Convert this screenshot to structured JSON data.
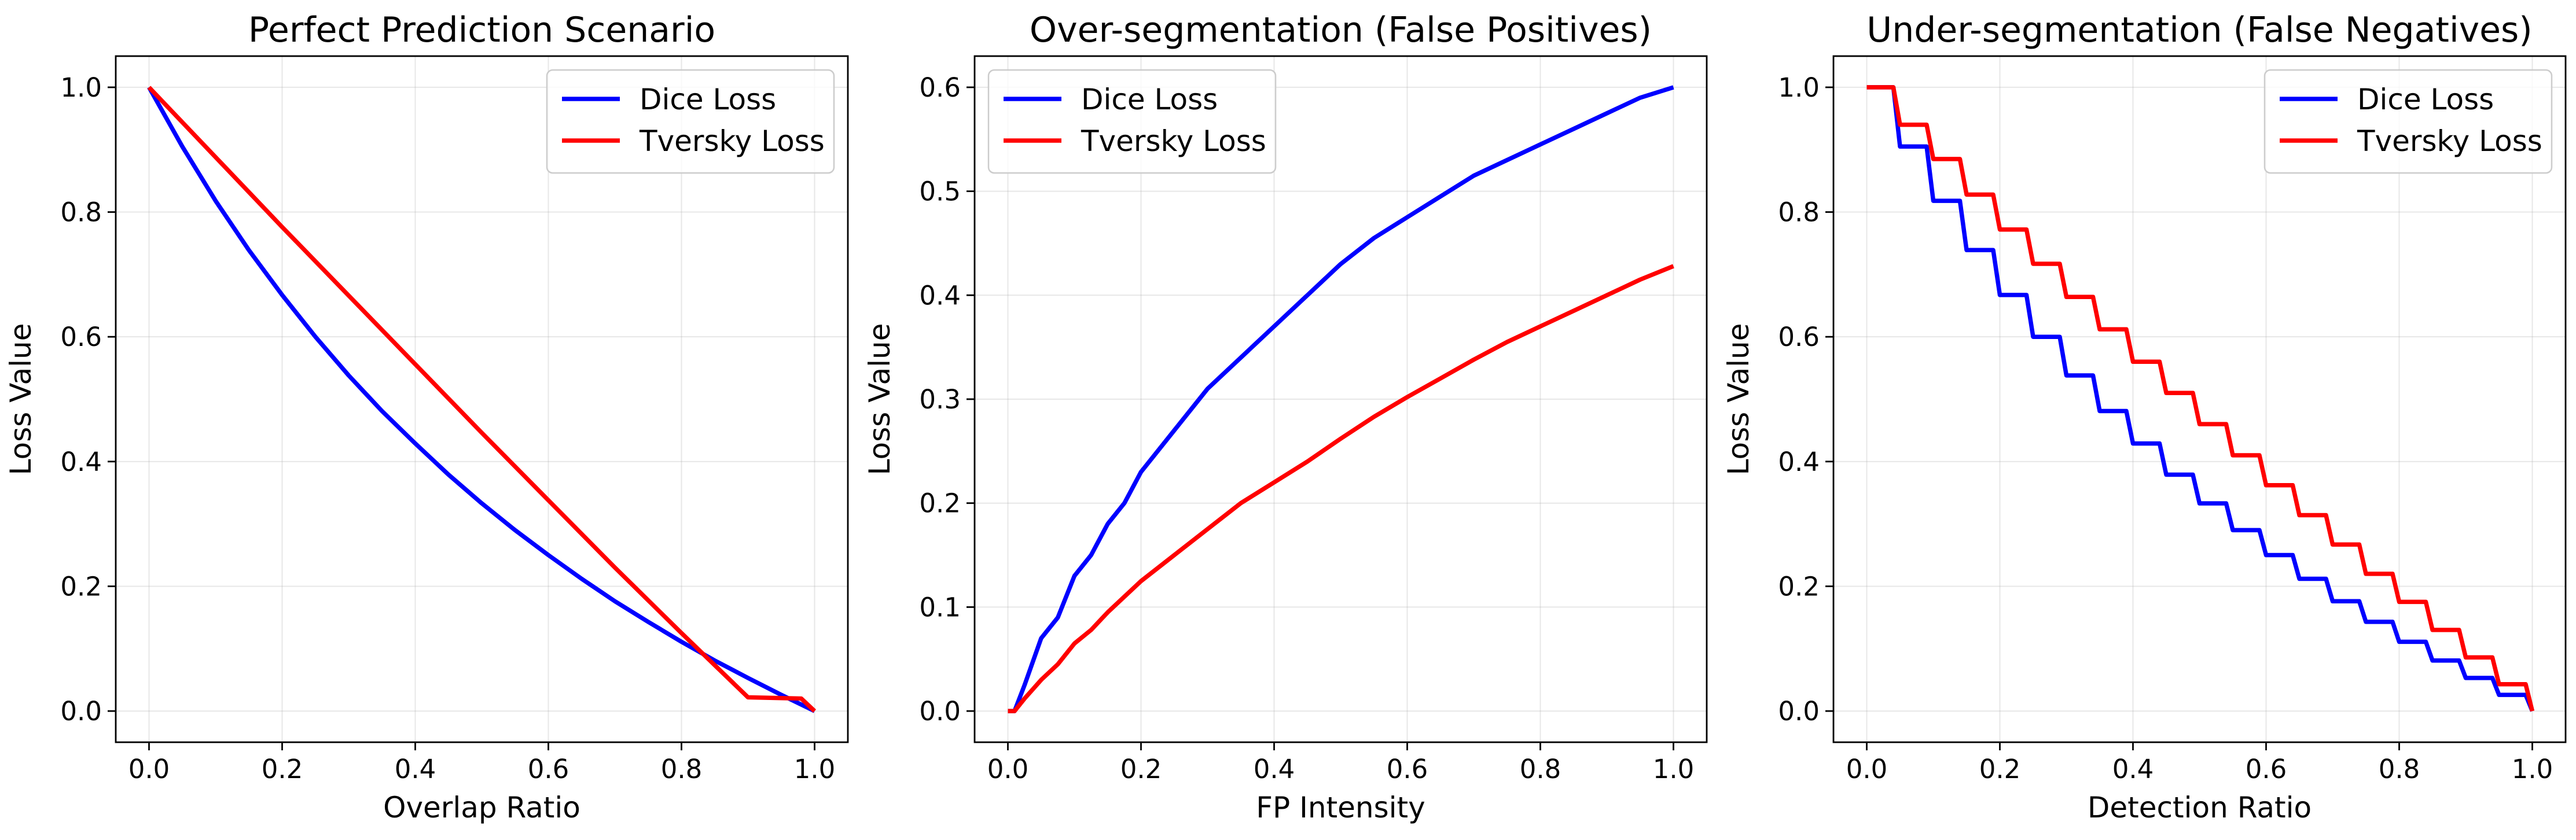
{
  "chart_data": [
    {
      "type": "line",
      "title": "Perfect Prediction Scenario",
      "xlabel": "Overlap Ratio",
      "ylabel": "Loss Value",
      "xlim": [
        -0.05,
        1.05
      ],
      "ylim": [
        -0.05,
        1.05
      ],
      "xticks": [
        0.0,
        0.2,
        0.4,
        0.6,
        0.8,
        1.0
      ],
      "yticks": [
        0.0,
        0.2,
        0.4,
        0.6,
        0.8,
        1.0
      ],
      "xtick_labels": [
        "0.0",
        "0.2",
        "0.4",
        "0.6",
        "0.8",
        "1.0"
      ],
      "ytick_labels": [
        "0.0",
        "0.2",
        "0.4",
        "0.6",
        "0.8",
        "1.0"
      ],
      "grid": true,
      "legend_position": "upper right",
      "series": [
        {
          "name": "Dice Loss",
          "color": "#0000ff",
          "x": [
            0.0,
            0.05,
            0.1,
            0.15,
            0.2,
            0.25,
            0.3,
            0.35,
            0.4,
            0.45,
            0.5,
            0.55,
            0.6,
            0.65,
            0.7,
            0.75,
            0.8,
            0.85,
            0.9,
            0.95,
            1.0
          ],
          "y": [
            1.0,
            0.905,
            0.818,
            0.739,
            0.667,
            0.6,
            0.538,
            0.481,
            0.429,
            0.379,
            0.333,
            0.29,
            0.25,
            0.212,
            0.176,
            0.143,
            0.111,
            0.081,
            0.053,
            0.026,
            0.0
          ]
        },
        {
          "name": "Tversky Loss",
          "color": "#ff0000",
          "x": [
            0.0,
            0.1,
            0.2,
            0.3,
            0.4,
            0.5,
            0.6,
            0.7,
            0.8,
            0.9,
            0.98,
            1.0
          ],
          "y": [
            1.0,
            0.888,
            0.776,
            0.666,
            0.556,
            0.446,
            0.338,
            0.23,
            0.125,
            0.022,
            0.02,
            0.0
          ]
        }
      ]
    },
    {
      "type": "line",
      "title": "Over-segmentation (False Positives)",
      "xlabel": "FP Intensity",
      "ylabel": "Loss Value",
      "xlim": [
        -0.05,
        1.05
      ],
      "ylim": [
        -0.03,
        0.63
      ],
      "xticks": [
        0.0,
        0.2,
        0.4,
        0.6,
        0.8,
        1.0
      ],
      "yticks": [
        0.0,
        0.1,
        0.2,
        0.3,
        0.4,
        0.5,
        0.6
      ],
      "xtick_labels": [
        "0.0",
        "0.2",
        "0.4",
        "0.6",
        "0.8",
        "1.0"
      ],
      "ytick_labels": [
        "0.0",
        "0.1",
        "0.2",
        "0.3",
        "0.4",
        "0.5",
        "0.6"
      ],
      "grid": true,
      "legend_position": "upper left",
      "series": [
        {
          "name": "Dice Loss",
          "color": "#0000ff",
          "x": [
            0.0,
            0.01,
            0.025,
            0.05,
            0.075,
            0.1,
            0.125,
            0.15,
            0.175,
            0.2,
            0.25,
            0.3,
            0.35,
            0.4,
            0.45,
            0.5,
            0.55,
            0.6,
            0.65,
            0.7,
            0.75,
            0.8,
            0.85,
            0.9,
            0.95,
            1.0
          ],
          "y": [
            0.0,
            0.0,
            0.025,
            0.07,
            0.09,
            0.13,
            0.15,
            0.18,
            0.2,
            0.23,
            0.27,
            0.31,
            0.34,
            0.37,
            0.4,
            0.43,
            0.455,
            0.475,
            0.495,
            0.515,
            0.53,
            0.545,
            0.56,
            0.575,
            0.59,
            0.6
          ]
        },
        {
          "name": "Tversky Loss",
          "color": "#ff0000",
          "x": [
            0.0,
            0.01,
            0.025,
            0.05,
            0.075,
            0.1,
            0.125,
            0.15,
            0.175,
            0.2,
            0.25,
            0.3,
            0.35,
            0.4,
            0.45,
            0.5,
            0.55,
            0.6,
            0.65,
            0.7,
            0.75,
            0.8,
            0.85,
            0.9,
            0.95,
            1.0
          ],
          "y": [
            0.0,
            0.0,
            0.012,
            0.03,
            0.045,
            0.065,
            0.078,
            0.095,
            0.11,
            0.125,
            0.15,
            0.175,
            0.2,
            0.22,
            0.24,
            0.262,
            0.283,
            0.302,
            0.32,
            0.338,
            0.355,
            0.37,
            0.385,
            0.4,
            0.415,
            0.428
          ]
        }
      ]
    },
    {
      "type": "line",
      "title": "Under-segmentation (False Negatives)",
      "xlabel": "Detection Ratio",
      "ylabel": "Loss Value",
      "xlim": [
        -0.05,
        1.05
      ],
      "ylim": [
        -0.05,
        1.05
      ],
      "xticks": [
        0.0,
        0.2,
        0.4,
        0.6,
        0.8,
        1.0
      ],
      "yticks": [
        0.0,
        0.2,
        0.4,
        0.6,
        0.8,
        1.0
      ],
      "xtick_labels": [
        "0.0",
        "0.2",
        "0.4",
        "0.6",
        "0.8",
        "1.0"
      ],
      "ytick_labels": [
        "0.0",
        "0.2",
        "0.4",
        "0.6",
        "0.8",
        "1.0"
      ],
      "grid": true,
      "legend_position": "upper right",
      "series": [
        {
          "name": "Dice Loss",
          "color": "#0000ff",
          "steps": [
            1.0,
            0.905,
            0.818,
            0.739,
            0.667,
            0.6,
            0.538,
            0.481,
            0.429,
            0.379,
            0.333,
            0.29,
            0.25,
            0.212,
            0.176,
            0.143,
            0.111,
            0.081,
            0.053,
            0.026,
            0.0
          ]
        },
        {
          "name": "Tversky Loss",
          "color": "#ff0000",
          "steps": [
            1.0,
            0.94,
            0.885,
            0.828,
            0.772,
            0.717,
            0.664,
            0.612,
            0.56,
            0.51,
            0.46,
            0.41,
            0.362,
            0.314,
            0.267,
            0.22,
            0.175,
            0.13,
            0.086,
            0.043,
            0.0
          ]
        }
      ]
    }
  ]
}
